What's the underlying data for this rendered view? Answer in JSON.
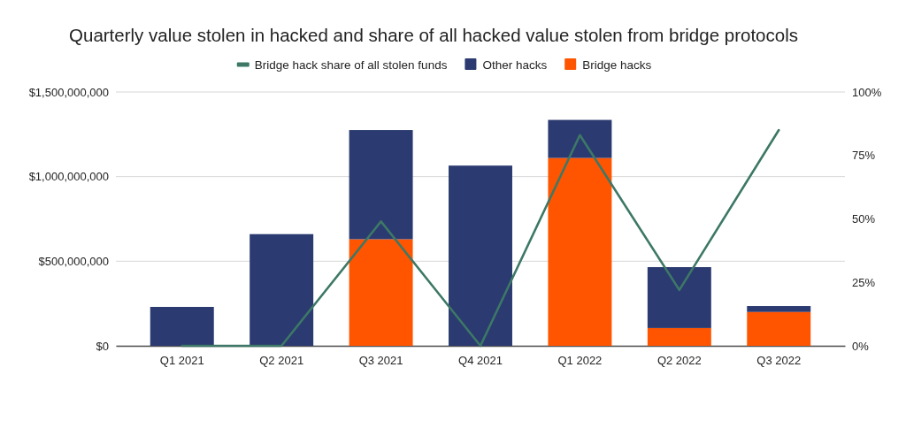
{
  "chart_data": {
    "type": "bar",
    "title": "Quarterly value stolen in hacked and share of all hacked value stolen from bridge protocols",
    "categories": [
      "Q1 2021",
      "Q2 2021",
      "Q3 2021",
      "Q4 2021",
      "Q1 2022",
      "Q2 2022",
      "Q3 2022"
    ],
    "stacked": true,
    "series": [
      {
        "name": "Bridge hacks",
        "color": "#ff5500",
        "values": [
          0,
          0,
          630000000,
          0,
          1110000000,
          105000000,
          200000000
        ]
      },
      {
        "name": "Other hacks",
        "color": "#2b3a70",
        "values": [
          230000000,
          660000000,
          645000000,
          1065000000,
          225000000,
          360000000,
          35000000
        ]
      },
      {
        "name": "Bridge hack share of all stolen funds",
        "type": "line",
        "axis": "y2",
        "color": "#3d7866",
        "values": [
          0,
          0,
          49,
          0,
          83,
          22,
          85
        ]
      }
    ],
    "ylim": [
      0,
      1500000000
    ],
    "yticks": [
      {
        "value": 0,
        "label": "$0"
      },
      {
        "value": 500000000,
        "label": "$500,000,000"
      },
      {
        "value": 1000000000,
        "label": "$1,000,000,000"
      },
      {
        "value": 1500000000,
        "label": "$1,500,000,000"
      }
    ],
    "y2lim": [
      0,
      100
    ],
    "y2ticks": [
      {
        "value": 0,
        "label": "0%"
      },
      {
        "value": 25,
        "label": "25%"
      },
      {
        "value": 50,
        "label": "50%"
      },
      {
        "value": 75,
        "label": "75%"
      },
      {
        "value": 100,
        "label": "100%"
      }
    ],
    "grid": "y",
    "legend": "top"
  }
}
